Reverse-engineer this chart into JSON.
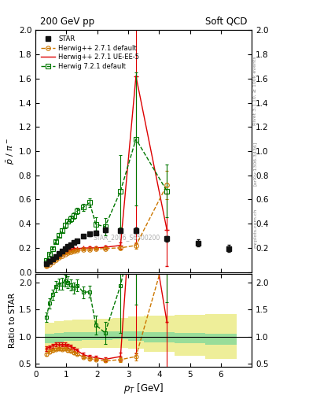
{
  "title_left": "200 GeV pp",
  "title_right": "Soft QCD",
  "ylabel_main": "$\\bar{p}$ / $\\pi^-$",
  "ylabel_ratio": "Ratio to STAR",
  "xlabel": "$p_T$ [GeV]",
  "right_label_top": "Rivet 3.1.10, ≥ 100k events",
  "right_label_mid": "[arXiv:1306.3436]",
  "right_label_bot": "mcplots.cern.ch",
  "watermark": "STAR_2006_S6500200",
  "star_x": [
    0.35,
    0.45,
    0.55,
    0.65,
    0.75,
    0.85,
    0.95,
    1.05,
    1.15,
    1.25,
    1.35,
    1.55,
    1.75,
    1.95,
    2.25,
    2.75,
    3.25,
    4.25,
    5.25,
    6.25
  ],
  "star_y": [
    0.07,
    0.09,
    0.11,
    0.13,
    0.155,
    0.175,
    0.19,
    0.21,
    0.225,
    0.245,
    0.26,
    0.295,
    0.315,
    0.325,
    0.35,
    0.345,
    0.345,
    0.275,
    0.24,
    0.195
  ],
  "star_yerr": [
    0.004,
    0.005,
    0.006,
    0.007,
    0.008,
    0.009,
    0.009,
    0.01,
    0.011,
    0.012,
    0.013,
    0.014,
    0.015,
    0.016,
    0.018,
    0.02,
    0.022,
    0.025,
    0.028,
    0.03
  ],
  "hw271_x": [
    0.35,
    0.45,
    0.55,
    0.65,
    0.75,
    0.85,
    0.95,
    1.05,
    1.15,
    1.25,
    1.35,
    1.55,
    1.75,
    1.95,
    2.25,
    2.75,
    3.25,
    4.25
  ],
  "hw271_y": [
    0.048,
    0.065,
    0.082,
    0.1,
    0.12,
    0.135,
    0.148,
    0.158,
    0.167,
    0.173,
    0.178,
    0.185,
    0.188,
    0.19,
    0.195,
    0.2,
    0.22,
    0.72
  ],
  "hw271_yerr": [
    0.002,
    0.002,
    0.003,
    0.003,
    0.004,
    0.004,
    0.004,
    0.005,
    0.005,
    0.005,
    0.005,
    0.006,
    0.006,
    0.007,
    0.01,
    0.015,
    0.025,
    0.12
  ],
  "hw271ue_x": [
    0.35,
    0.45,
    0.55,
    0.65,
    0.75,
    0.85,
    0.95,
    1.05,
    1.15,
    1.25,
    1.35,
    1.55,
    1.75,
    1.95,
    2.25,
    2.75,
    3.25,
    4.25
  ],
  "hw271ue_y": [
    0.055,
    0.073,
    0.092,
    0.112,
    0.132,
    0.15,
    0.163,
    0.175,
    0.184,
    0.19,
    0.194,
    0.198,
    0.2,
    0.2,
    0.205,
    0.22,
    1.62,
    0.35
  ],
  "hw271ue_yerr": [
    0.003,
    0.003,
    0.004,
    0.005,
    0.006,
    0.006,
    0.007,
    0.007,
    0.008,
    0.008,
    0.008,
    0.009,
    0.009,
    0.01,
    0.015,
    0.025,
    1.38,
    0.3
  ],
  "hw721_x": [
    0.35,
    0.45,
    0.55,
    0.65,
    0.75,
    0.85,
    0.95,
    1.05,
    1.15,
    1.25,
    1.35,
    1.55,
    1.75,
    1.95,
    2.25,
    2.75,
    3.25,
    4.25
  ],
  "hw721_y": [
    0.095,
    0.145,
    0.195,
    0.25,
    0.305,
    0.345,
    0.385,
    0.42,
    0.44,
    0.465,
    0.505,
    0.535,
    0.575,
    0.395,
    0.375,
    0.67,
    1.1,
    0.67
  ],
  "hw721_yerr": [
    0.006,
    0.008,
    0.01,
    0.013,
    0.016,
    0.018,
    0.02,
    0.022,
    0.023,
    0.025,
    0.027,
    0.03,
    0.035,
    0.055,
    0.07,
    0.3,
    0.55,
    0.22
  ],
  "band_x_edges": [
    0.3,
    0.6,
    0.9,
    1.2,
    1.5,
    2.0,
    2.5,
    3.0,
    3.5,
    4.5,
    5.5,
    6.5
  ],
  "band_green_lo": [
    0.88,
    0.9,
    0.92,
    0.93,
    0.94,
    0.94,
    0.95,
    0.93,
    0.9,
    0.88,
    0.86,
    0.85
  ],
  "band_green_hi": [
    1.06,
    1.07,
    1.08,
    1.09,
    1.09,
    1.1,
    1.1,
    1.1,
    1.09,
    1.07,
    1.06,
    1.05
  ],
  "band_yellow_lo": [
    0.72,
    0.74,
    0.76,
    0.78,
    0.79,
    0.8,
    0.8,
    0.78,
    0.72,
    0.65,
    0.6,
    0.58
  ],
  "band_yellow_hi": [
    1.26,
    1.28,
    1.3,
    1.31,
    1.32,
    1.33,
    1.35,
    1.37,
    1.38,
    1.4,
    1.42,
    1.44
  ],
  "color_star": "#111111",
  "color_hw271": "#cc7700",
  "color_hw271ue": "#dd0000",
  "color_hw721": "#007700",
  "color_band_green": "#99dd99",
  "color_band_yellow": "#eeee99",
  "ylim_main": [
    0.0,
    2.0
  ],
  "ylim_ratio": [
    0.45,
    2.15
  ],
  "xlim": [
    0.0,
    7.0
  ],
  "yticks_main": [
    0.0,
    0.2,
    0.4,
    0.6,
    0.8,
    1.0,
    1.2,
    1.4,
    1.6,
    1.8,
    2.0
  ],
  "yticks_ratio": [
    0.5,
    1.0,
    1.5,
    2.0
  ],
  "xticks": [
    0,
    1,
    2,
    3,
    4,
    5,
    6
  ]
}
